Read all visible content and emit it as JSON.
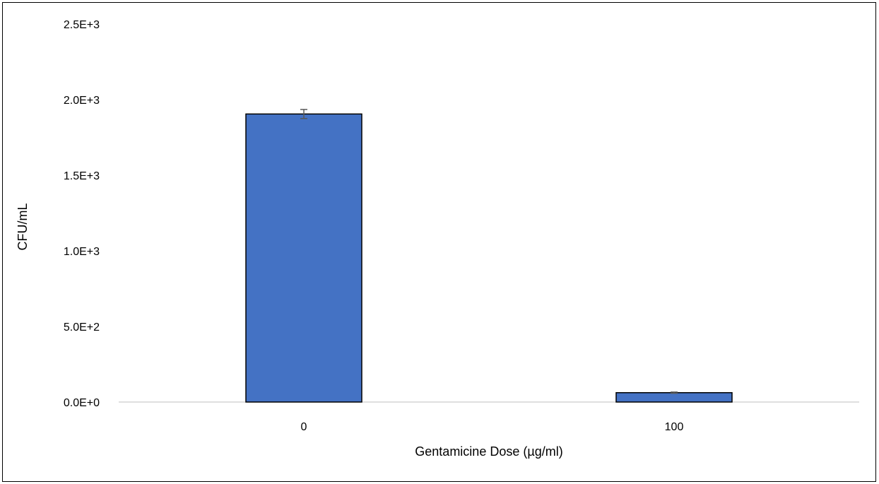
{
  "chart_data": {
    "type": "bar",
    "title": "",
    "xlabel": "Gentamicine Dose (µg/ml)",
    "ylabel": "CFU/mL",
    "categories": [
      "0",
      "100"
    ],
    "values": [
      1905,
      62
    ],
    "error": [
      30,
      4
    ],
    "ylim": [
      0,
      2500
    ],
    "yticks": [
      0,
      500,
      1000,
      1500,
      2000,
      2500
    ],
    "ytick_labels": [
      "0.0E+0",
      "5.0E+2",
      "1.0E+3",
      "1.5E+3",
      "2.0E+3",
      "2.5E+3"
    ],
    "grid": false,
    "legend": "none",
    "colors": {
      "bar": "#4472C4",
      "bar_edge": "#000000",
      "error_bar": "#595959",
      "axis": "#BFBFBF"
    }
  }
}
